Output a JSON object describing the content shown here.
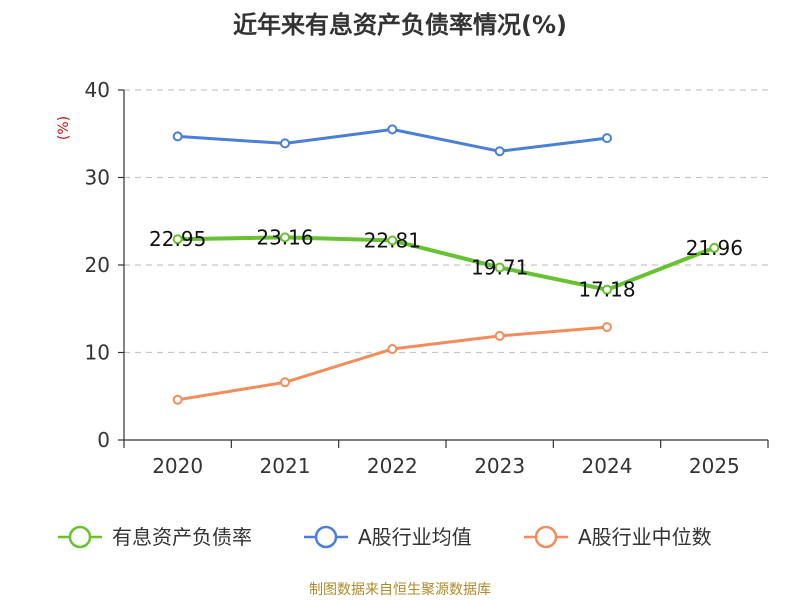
{
  "chart_data": {
    "type": "line",
    "title": "近年来有息资产负债率情况(%)",
    "ylabel": "(%)",
    "xlabel": "",
    "categories": [
      "2020",
      "2021",
      "2022",
      "2023",
      "2024",
      "2025"
    ],
    "ylim": [
      0,
      40
    ],
    "yticks": [
      0,
      10,
      20,
      30,
      40
    ],
    "grid": true,
    "legend_position": "bottom",
    "series": [
      {
        "name": "有息资产负债率",
        "color": "#66c22e",
        "values": [
          22.95,
          23.16,
          22.81,
          19.71,
          17.18,
          21.96
        ],
        "labels": [
          "22.95",
          "23.16",
          "22.81",
          "19.71",
          "17.18",
          "21.96"
        ],
        "show_labels": true
      },
      {
        "name": "A股行业均值",
        "color": "#4a7fd6",
        "values": [
          34.7,
          33.9,
          35.5,
          33.0,
          34.5,
          null
        ],
        "show_labels": false
      },
      {
        "name": "A股行业中位数",
        "color": "#f28c5a",
        "values": [
          4.6,
          6.6,
          10.4,
          11.9,
          12.9,
          null
        ],
        "show_labels": false
      }
    ],
    "source": "制图数据来自恒生聚源数据库"
  }
}
